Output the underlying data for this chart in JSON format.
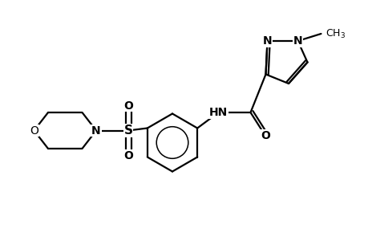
{
  "background_color": "#ffffff",
  "line_color": "#000000",
  "line_width": 1.6,
  "font_size": 10,
  "fig_width": 4.6,
  "fig_height": 3.0,
  "dpi": 100,
  "xlim": [
    0,
    9.2
  ],
  "ylim": [
    0,
    6.0
  ]
}
